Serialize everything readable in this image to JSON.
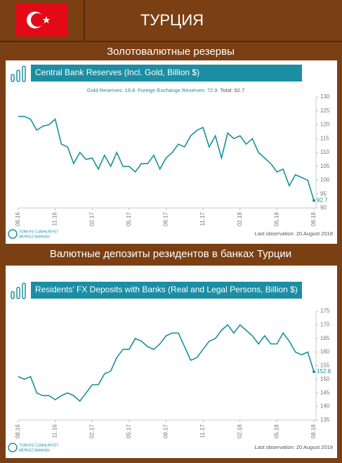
{
  "header": {
    "title": "ТУРЦИЯ"
  },
  "section_titles": [
    "Золотовалютные резервы",
    "Валютные депозиты резидентов в банках Турции"
  ],
  "chart_data": [
    {
      "type": "line",
      "title": "Central Bank Reserves (Incl. Gold, Billion $)",
      "notes": [
        "Gold Reserves: 19.8",
        "Foreign Exchange Reserves: 72.9",
        "Total: 92.7"
      ],
      "source": "Last observation: 20 August 2018",
      "logo": [
        "TÜRKİYE CUMHURİYET",
        "MERKEZ BANKASI"
      ],
      "categories": [
        "08.16",
        null,
        null,
        null,
        null,
        null,
        "11.16",
        null,
        null,
        null,
        null,
        null,
        "02.17",
        null,
        null,
        null,
        null,
        null,
        "05.17",
        null,
        null,
        null,
        null,
        null,
        "08.17",
        null,
        null,
        null,
        null,
        null,
        "11.17",
        null,
        null,
        null,
        null,
        null,
        "02.18",
        null,
        null,
        null,
        null,
        null,
        "05.18",
        null,
        null,
        null,
        null,
        null,
        "08.18"
      ],
      "series": [
        {
          "color": "#1a8fa0",
          "values": [
            123,
            123,
            122,
            118,
            119.5,
            120,
            122,
            113,
            112,
            106,
            110,
            107.5,
            108,
            104,
            109,
            105,
            110,
            105,
            105,
            103,
            106,
            106,
            109,
            104,
            108,
            110,
            113,
            112,
            116,
            118,
            119,
            112,
            116,
            108,
            117,
            115,
            116,
            113,
            115,
            110,
            108,
            106,
            103,
            104,
            98,
            102,
            101,
            100,
            92.7
          ]
        }
      ],
      "ylim": [
        90,
        130
      ],
      "yticks": [
        90,
        95,
        100,
        105,
        110,
        115,
        120,
        125,
        130
      ],
      "grid": false
    },
    {
      "type": "line",
      "title": "Residents' FX Deposits with Banks (Real and Legal Persons, Billion $)",
      "source": "Last observation: 20 August 2018",
      "logo": [
        "TÜRKİYE CUMHURİYET",
        "MERKEZ BANKASI"
      ],
      "categories": [
        "08.16",
        null,
        null,
        null,
        null,
        null,
        "11.16",
        null,
        null,
        null,
        null,
        null,
        "02.17",
        null,
        null,
        null,
        null,
        null,
        "05.17",
        null,
        null,
        null,
        null,
        null,
        "08.17",
        null,
        null,
        null,
        null,
        null,
        "11.17",
        null,
        null,
        null,
        null,
        null,
        "02.18",
        null,
        null,
        null,
        null,
        null,
        "05.18",
        null,
        null,
        null,
        null,
        null,
        "08.18"
      ],
      "series": [
        {
          "color": "#1a8fa0",
          "values": [
            151,
            150,
            151,
            145,
            144,
            144,
            142.5,
            144,
            145,
            144,
            142,
            145,
            148,
            148,
            152,
            153,
            158,
            161,
            161,
            165,
            164,
            162,
            161,
            163,
            166,
            167,
            167,
            162,
            157,
            158,
            161,
            164,
            165,
            168,
            170,
            167,
            170,
            168,
            166,
            163,
            166,
            163,
            163,
            167,
            164,
            160,
            159,
            160,
            152.8
          ]
        }
      ],
      "ylim": [
        135,
        175
      ],
      "yticks": [
        135,
        140,
        145,
        150,
        155,
        160,
        165,
        170,
        175
      ],
      "grid": false
    }
  ]
}
